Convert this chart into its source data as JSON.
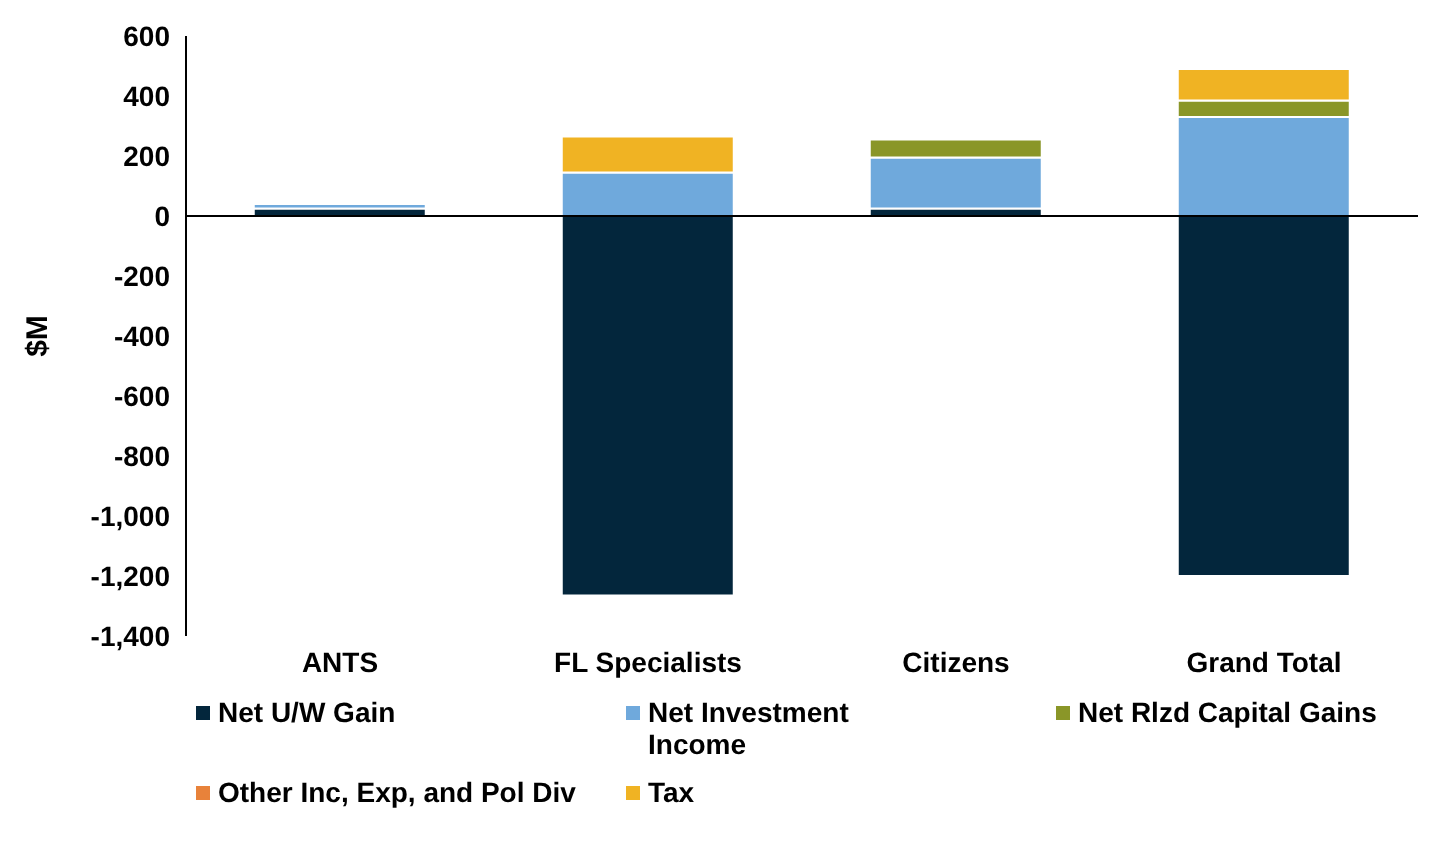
{
  "chart_data": {
    "type": "bar",
    "stacked": true,
    "ylabel": "$M",
    "categories": [
      "ANTS",
      "FL Specialists",
      "Citizens",
      "Grand Total"
    ],
    "series": [
      {
        "name": "Net U/W Gain",
        "color": "#03263c",
        "values": [
          25,
          -1265,
          25,
          -1200
        ]
      },
      {
        "name": "Net Investment Income",
        "color": "#6fa9dc",
        "values": [
          15,
          145,
          170,
          330
        ]
      },
      {
        "name": "Net Rlzd Capital Gains",
        "color": "#8a9628",
        "values": [
          0,
          0,
          60,
          55
        ]
      },
      {
        "name": "Other Inc, Exp, and Pol Div",
        "color": "#e8823a",
        "values": [
          0,
          0,
          0,
          0
        ]
      },
      {
        "name": "Tax",
        "color": "#f0b323",
        "values": [
          null,
          120,
          0,
          105
        ]
      }
    ],
    "ylim": [
      -1400,
      600
    ],
    "yticks": [
      {
        "value": -1400,
        "label": "-1,400"
      },
      {
        "value": -1200,
        "label": "-1,200"
      },
      {
        "value": -1000,
        "label": "-1,000"
      },
      -800,
      -600,
      -400,
      -200,
      0,
      200,
      400,
      600
    ],
    "ref_lines": [
      {
        "axis": "y",
        "value": 0,
        "color": "#000000"
      }
    ],
    "grid": false,
    "legend": "bottom"
  }
}
